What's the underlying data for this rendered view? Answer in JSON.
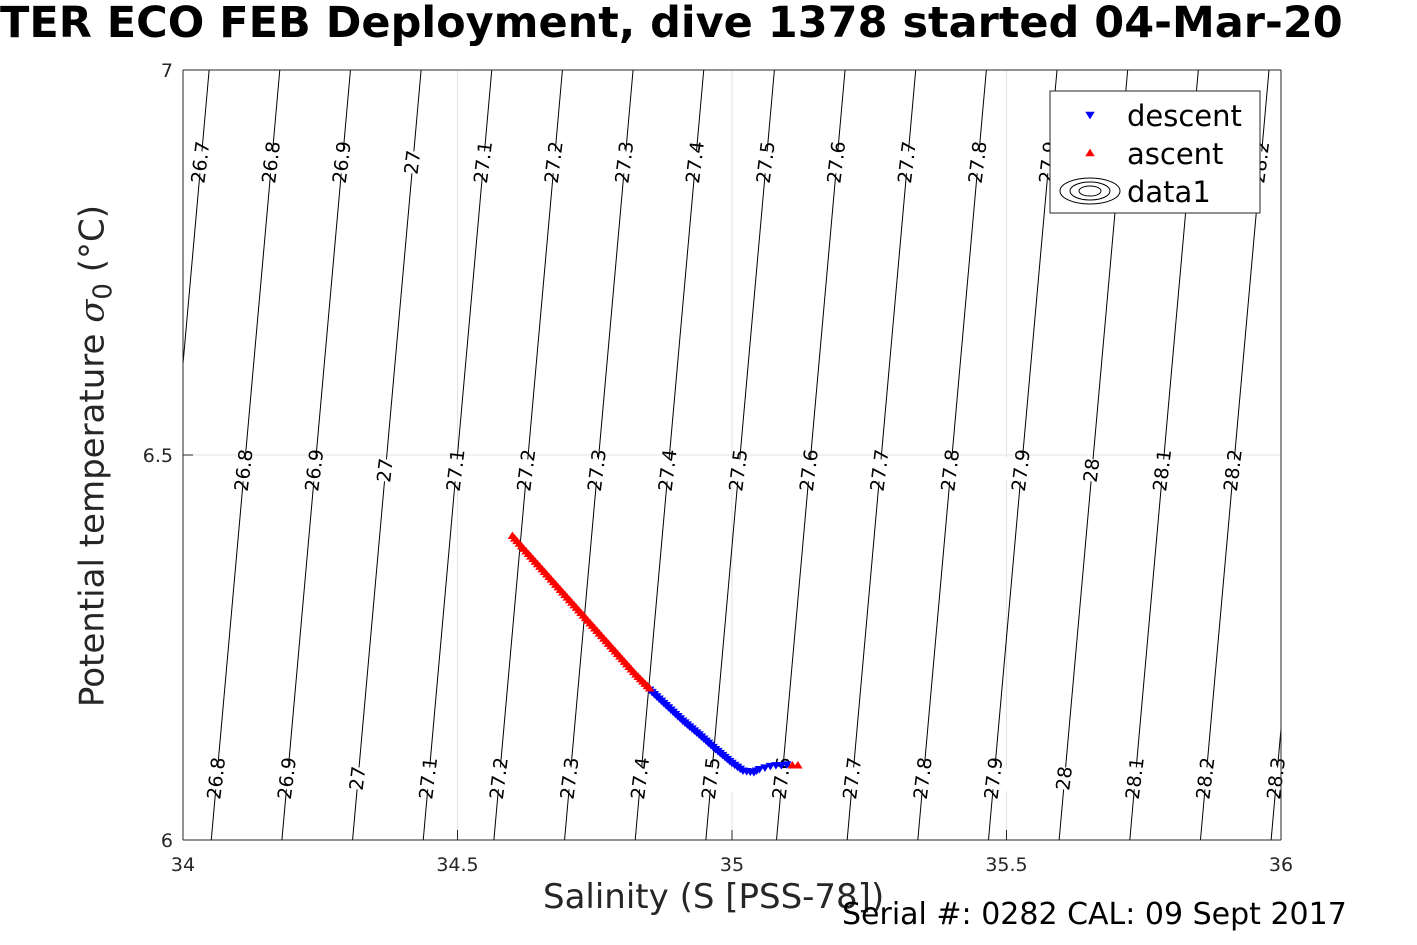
{
  "page": {
    "title": "TER ECO FEB Deployment, dive 1378 started 04-Mar-20",
    "xlabel": "Salinity (S [PSS-78])",
    "ylabel_text": "Potential temperature ",
    "ylabel_sigma": "σ",
    "ylabel_sub": "0",
    "ylabel_unit": " (°C)",
    "footer": "Serial #: 0282  CAL: 09 Sept 2017"
  },
  "chart_data": {
    "type": "scatter",
    "title": "TER ECO FEB Deployment, dive 1378 started 04-Mar-20",
    "xlabel": "Salinity (S [PSS-78])",
    "ylabel": "Potential temperature σ0 (°C)",
    "xlim": [
      34,
      36
    ],
    "ylim": [
      6,
      7
    ],
    "xticks": [
      "34",
      "34.5",
      "35",
      "35.5",
      "36"
    ],
    "yticks": [
      "6",
      "6.5",
      "7"
    ],
    "grid": true,
    "legend_position": "top-right",
    "legend": [
      "descent",
      "ascent",
      "data1"
    ],
    "colors": {
      "descent": "#0000ff",
      "ascent": "#ff0000",
      "contour": "#000000",
      "grid": "#e3e3e3"
    },
    "series": [
      {
        "name": "descent",
        "marker": "triangle-down",
        "x": [
          34.85,
          34.88,
          34.91,
          34.94,
          34.97,
          35.0,
          35.02,
          35.04,
          35.05,
          35.06,
          35.07,
          35.08,
          35.09,
          35.1
        ],
        "y": [
          6.195,
          6.175,
          6.155,
          6.137,
          6.118,
          6.1,
          6.09,
          6.088,
          6.092,
          6.094,
          6.096,
          6.097,
          6.097,
          6.098
        ]
      },
      {
        "name": "ascent",
        "marker": "triangle-up",
        "x": [
          34.6,
          34.625,
          34.65,
          34.675,
          34.7,
          34.725,
          34.75,
          34.775,
          34.8,
          34.825,
          34.85,
          35.11,
          35.12
        ],
        "y": [
          6.395,
          6.375,
          6.355,
          6.335,
          6.315,
          6.295,
          6.275,
          6.255,
          6.235,
          6.215,
          6.197,
          6.097,
          6.097
        ]
      }
    ],
    "contours": {
      "series_name": "data1",
      "levels": [
        "26.7",
        "26.8",
        "26.9",
        "27",
        "27.1",
        "27.2",
        "27.3",
        "27.4",
        "27.5",
        "27.6",
        "27.7",
        "27.8",
        "27.9",
        "28",
        "28.1",
        "28.2",
        "28.3"
      ],
      "band_top_labels": [
        "26.7",
        "26.8",
        "26.9",
        "27",
        "27.1",
        "27.2",
        "27.3",
        "27.4",
        "27.5",
        "27.6",
        "27.7",
        "27.8",
        "27.9",
        "28",
        "28.1",
        "28.2"
      ],
      "band_mid_labels": [
        "26.8",
        "26.9",
        "27",
        "27.1",
        "27.2",
        "27.3",
        "27.4",
        "27.5",
        "27.6",
        "27.7",
        "27.8",
        "27.9",
        "28",
        "28.1",
        "28.2"
      ],
      "band_bot_labels": [
        "26.8",
        "26.9",
        "27",
        "27.1",
        "27.2",
        "27.3",
        "27.4",
        "27.5",
        "27.6",
        "27.7",
        "27.8",
        "27.9",
        "28",
        "28.1",
        "28.2",
        "28.3"
      ]
    }
  }
}
